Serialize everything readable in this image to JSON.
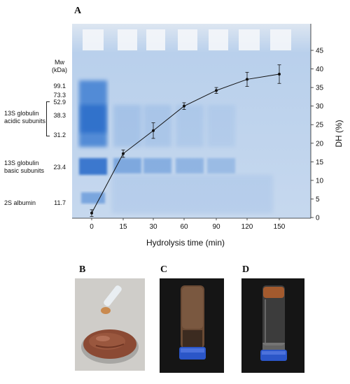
{
  "panels": {
    "A": "A",
    "B": "B",
    "C": "C",
    "D": "D"
  },
  "gel": {
    "mw_header": [
      "Mw",
      "(kDa)"
    ],
    "mw_markers": [
      "99.1",
      "73.3",
      "52.9",
      "38.3",
      "31.2",
      "23.4",
      "11.7"
    ],
    "band_labels": {
      "acidic": [
        "13S globulin",
        "acidic subunits"
      ],
      "basic": [
        "13S globulin",
        "basic subunits"
      ],
      "albumin": "2S albumin"
    }
  },
  "chart_data": {
    "type": "line",
    "xlabel": "Hydrolysis time (min)",
    "ylabel": "DH (%)",
    "categories": [
      "0",
      "15",
      "30",
      "60",
      "90",
      "120",
      "150"
    ],
    "values": [
      1.2,
      17.2,
      23.4,
      30.0,
      34.2,
      37.2,
      38.6
    ],
    "errors": [
      0.9,
      1.0,
      2.1,
      0.9,
      0.8,
      1.9,
      2.5
    ],
    "ylim": [
      0,
      45
    ],
    "yticks": [
      "0",
      "5",
      "10",
      "15",
      "20",
      "25",
      "30",
      "35",
      "40",
      "45"
    ],
    "y_axis_side": "right"
  },
  "colors": {
    "gel_bg": "#c9d9ec",
    "band": "#3e7ed0",
    "line": "#111111",
    "gel_paste": "#8c4a34",
    "photo_bg": "#1a1a1a",
    "cap": "#2b56c8"
  }
}
